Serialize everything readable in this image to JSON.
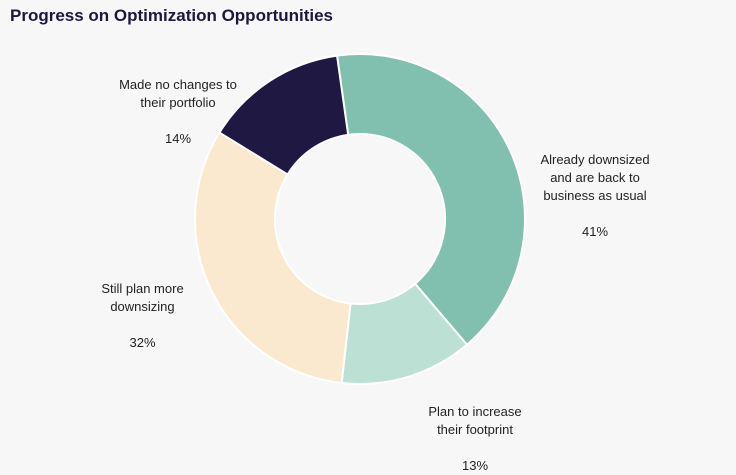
{
  "chart_data": {
    "type": "pie",
    "title": "Progress on Optimization Opportunities",
    "donut": true,
    "start_category": "Already downsized and are back to business as usual",
    "categories": [
      "Already downsized and are back to business as usual",
      "Plan to increase their footprint",
      "Still plan more downsizing",
      "Made no changes to their portfolio"
    ],
    "labels": [
      "Already downsized\nand are back to\nbusiness as usual",
      "Plan to increase\ntheir footprint",
      "Still plan more\ndownsizing",
      "Made no changes to\ntheir portfolio"
    ],
    "values": [
      41,
      13,
      32,
      14
    ],
    "value_labels": [
      "41%",
      "13%",
      "32%",
      "14%"
    ],
    "colors": [
      "#81bfae",
      "#bde0d4",
      "#fbe9cf",
      "#1e1842"
    ]
  }
}
